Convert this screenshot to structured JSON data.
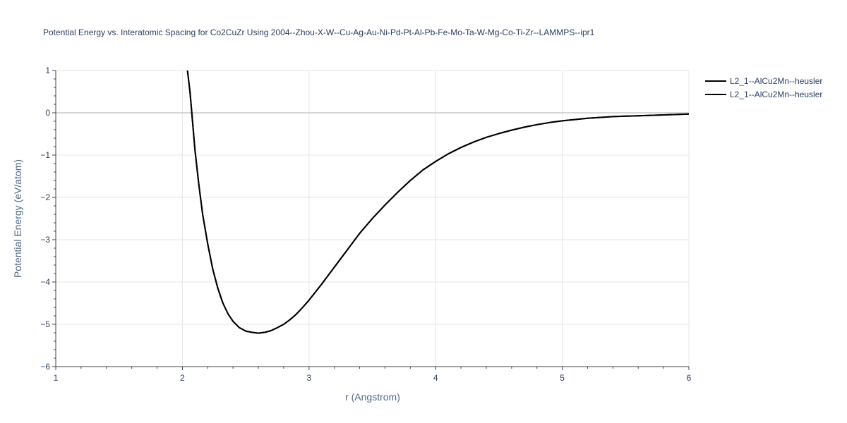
{
  "chart_data": {
    "type": "line",
    "title": "Potential Energy vs. Interatomic Spacing for Co2CuZr Using 2004--Zhou-X-W--Cu-Ag-Au-Ni-Pd-Pt-Al-Pb-Fe-Mo-Ta-W-Mg-Co-Ti-Zr--LAMMPS--ipr1",
    "xlabel": "r (Angstrom)",
    "ylabel": "Potential Energy (eV/atom)",
    "xlim": [
      1,
      6
    ],
    "ylim": [
      -6,
      1
    ],
    "x_ticks": [
      "1",
      "2",
      "3",
      "4",
      "5",
      "6"
    ],
    "y_ticks": [
      "1",
      "0",
      "−1",
      "−2",
      "−3",
      "−4",
      "−5",
      "−6"
    ],
    "x_tick_values": [
      1,
      2,
      3,
      4,
      5,
      6
    ],
    "y_tick_values": [
      1,
      0,
      -1,
      -2,
      -3,
      -4,
      -5,
      -6
    ],
    "grid": true,
    "legend_position": "top-right",
    "series": [
      {
        "name": "L2_1--AlCu2Mn--heusler",
        "color": "#000000",
        "x": [
          2.04,
          2.06,
          2.08,
          2.1,
          2.13,
          2.16,
          2.2,
          2.24,
          2.28,
          2.32,
          2.36,
          2.4,
          2.45,
          2.5,
          2.55,
          2.6,
          2.65,
          2.7,
          2.75,
          2.8,
          2.85,
          2.9,
          2.95,
          3.0,
          3.1,
          3.2,
          3.3,
          3.4,
          3.5,
          3.6,
          3.7,
          3.8,
          3.9,
          4.0,
          4.1,
          4.2,
          4.3,
          4.4,
          4.5,
          4.6,
          4.7,
          4.8,
          4.9,
          5.0,
          5.2,
          5.4,
          5.6,
          5.8,
          6.0
        ],
        "y": [
          1.0,
          0.5,
          -0.2,
          -0.9,
          -1.7,
          -2.4,
          -3.1,
          -3.7,
          -4.15,
          -4.5,
          -4.75,
          -4.93,
          -5.08,
          -5.16,
          -5.19,
          -5.21,
          -5.19,
          -5.15,
          -5.08,
          -5.0,
          -4.89,
          -4.76,
          -4.6,
          -4.43,
          -4.05,
          -3.65,
          -3.25,
          -2.85,
          -2.5,
          -2.18,
          -1.88,
          -1.6,
          -1.35,
          -1.15,
          -0.97,
          -0.82,
          -0.69,
          -0.58,
          -0.49,
          -0.41,
          -0.34,
          -0.28,
          -0.23,
          -0.19,
          -0.13,
          -0.09,
          -0.07,
          -0.05,
          -0.03
        ]
      },
      {
        "name": "L2_1--AlCu2Mn--heusler",
        "color": "#000000",
        "x": [
          2.04,
          2.06,
          2.08,
          2.1,
          2.13,
          2.16,
          2.2,
          2.24,
          2.28,
          2.32,
          2.36,
          2.4,
          2.45,
          2.5,
          2.55,
          2.6,
          2.65,
          2.7,
          2.75,
          2.8,
          2.85,
          2.9,
          2.95,
          3.0,
          3.1,
          3.2,
          3.3,
          3.4,
          3.5,
          3.6,
          3.7,
          3.8,
          3.9,
          4.0,
          4.1,
          4.2,
          4.3,
          4.4,
          4.5,
          4.6,
          4.7,
          4.8,
          4.9,
          5.0,
          5.2,
          5.4,
          5.6,
          5.8,
          6.0
        ],
        "y": [
          1.0,
          0.5,
          -0.2,
          -0.9,
          -1.7,
          -2.4,
          -3.1,
          -3.7,
          -4.15,
          -4.5,
          -4.75,
          -4.93,
          -5.08,
          -5.16,
          -5.19,
          -5.21,
          -5.19,
          -5.15,
          -5.08,
          -5.0,
          -4.89,
          -4.76,
          -4.6,
          -4.43,
          -4.05,
          -3.65,
          -3.25,
          -2.85,
          -2.5,
          -2.18,
          -1.88,
          -1.6,
          -1.35,
          -1.15,
          -0.97,
          -0.82,
          -0.69,
          -0.58,
          -0.49,
          -0.41,
          -0.34,
          -0.28,
          -0.23,
          -0.19,
          -0.13,
          -0.09,
          -0.07,
          -0.05,
          -0.03
        ]
      }
    ]
  }
}
